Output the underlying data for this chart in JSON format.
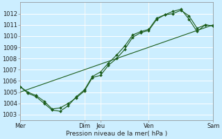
{
  "title": "Pression niveau de la mer( hPa )",
  "background_color": "#cceeff",
  "grid_color": "#ffffff",
  "line_color": "#1a5c1a",
  "ylim": [
    1002.5,
    1013.0
  ],
  "yticks": [
    1003,
    1004,
    1005,
    1006,
    1007,
    1008,
    1009,
    1010,
    1011,
    1012
  ],
  "xtick_positions": [
    0,
    96,
    120,
    192,
    288
  ],
  "xtick_labels": [
    "Mer",
    "Dim",
    "Jeu",
    "Ven",
    "Sam"
  ],
  "series": [
    {
      "x": [
        0,
        12,
        24,
        36,
        48,
        60,
        72,
        84,
        96,
        108,
        120,
        132,
        144,
        156,
        168,
        180,
        192,
        204,
        216,
        228,
        240,
        252,
        264,
        276,
        288
      ],
      "y": [
        1005.5,
        1005.0,
        1004.7,
        1004.2,
        1003.5,
        1003.6,
        1004.0,
        1004.5,
        1005.1,
        1006.3,
        1006.5,
        1007.4,
        1008.0,
        1008.8,
        1009.9,
        1010.3,
        1010.5,
        1011.5,
        1011.9,
        1012.0,
        1012.3,
        1011.8,
        1010.7,
        1011.0,
        1010.9
      ],
      "marker": true
    },
    {
      "x": [
        0,
        12,
        24,
        36,
        48,
        60,
        72,
        84,
        96,
        108,
        120,
        132,
        144,
        156,
        168,
        180,
        192,
        204,
        216,
        228,
        240,
        252,
        264,
        276,
        288
      ],
      "y": [
        1005.5,
        1004.9,
        1004.6,
        1004.0,
        1003.4,
        1003.3,
        1003.8,
        1004.6,
        1005.2,
        1006.4,
        1006.8,
        1007.6,
        1008.3,
        1009.1,
        1010.1,
        1010.4,
        1010.6,
        1011.6,
        1011.9,
        1012.2,
        1012.4,
        1011.5,
        1010.4,
        1011.0,
        1010.9
      ],
      "marker": true
    },
    {
      "x": [
        0,
        288
      ],
      "y": [
        1005.0,
        1011.0
      ],
      "marker": false
    }
  ],
  "vline_positions": [
    96,
    120,
    192,
    288
  ],
  "vline_color": "#2d6e2d"
}
